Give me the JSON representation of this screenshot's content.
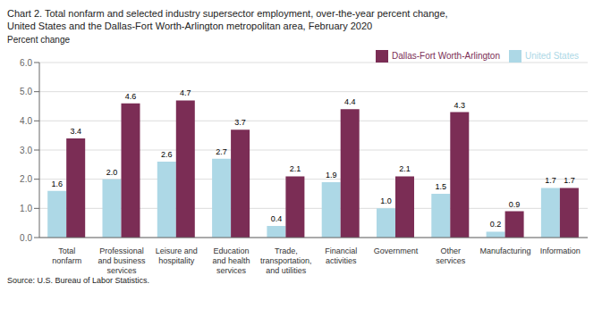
{
  "chart_data": {
    "type": "bar",
    "title": "Chart 2. Total nonfarm and selected industry supersector employment, over-the-year percent change,",
    "subtitle": "United States and the Dallas-Fort Worth-Arlington metropolitan area, February 2020",
    "ylabel": "Percent change",
    "annotations": [
      "Source: U.S. Bureau of Labor Statistics."
    ],
    "categories": [
      "Total\nnonfarm",
      "Professional\nand business\nservices",
      "Leisure and\nhospitality",
      "Education\nand health\nservices",
      "Trade,\ntransportation,\nand utilities",
      "Financial\nactivities",
      "Government",
      "Other\nservices",
      "Manufacturing",
      "Information"
    ],
    "series": [
      {
        "name": "United States",
        "color": "#add8e6",
        "values": [
          1.6,
          2.0,
          2.6,
          2.7,
          0.4,
          1.9,
          1.0,
          1.5,
          0.2,
          1.7
        ],
        "value_labels": [
          "1.6",
          "2.0",
          "2.6",
          "2.7",
          "0.4",
          "1.9",
          "1.0",
          "1.5",
          "0.2",
          "1.7"
        ]
      },
      {
        "name": "Dallas-Fort Worth-Arlington",
        "color": "#7b2d55",
        "values": [
          3.4,
          4.6,
          4.7,
          3.7,
          2.1,
          4.4,
          2.1,
          4.3,
          0.9,
          1.7
        ],
        "value_labels": [
          "3.4",
          "4.6",
          "4.7",
          "3.7",
          "2.1",
          "4.4",
          "2.1",
          "4.3",
          "0.9",
          "1.7"
        ]
      }
    ],
    "ylim": [
      0,
      6.0
    ],
    "yticks": [
      {
        "value": 0,
        "label": "0.0"
      },
      {
        "value": 1,
        "label": "1.0"
      },
      {
        "value": 2,
        "label": "2.0"
      },
      {
        "value": 3,
        "label": "3.0"
      },
      {
        "value": 4,
        "label": "4.0"
      },
      {
        "value": 5,
        "label": "5.0"
      },
      {
        "value": 6,
        "label": "6.0"
      }
    ],
    "grid": true,
    "legend": "upper right",
    "data_labels": true
  }
}
